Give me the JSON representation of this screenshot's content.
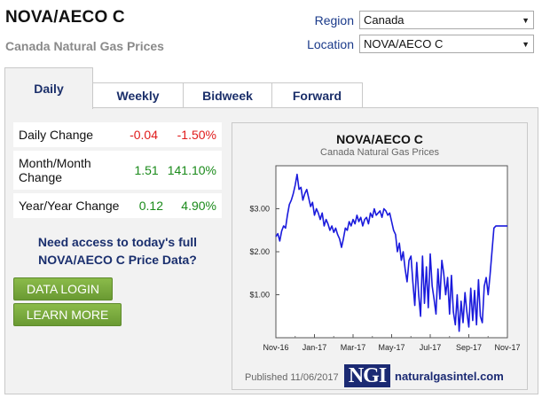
{
  "header": {
    "title": "NOVA/AECO C",
    "subtitle": "Canada Natural Gas Prices"
  },
  "filters": {
    "region_label": "Region",
    "region_value": "Canada",
    "location_label": "Location",
    "location_value": "NOVA/AECO C"
  },
  "tabs": [
    {
      "label": "Daily",
      "active": true
    },
    {
      "label": "Weekly",
      "active": false
    },
    {
      "label": "Bidweek",
      "active": false
    },
    {
      "label": "Forward",
      "active": false
    }
  ],
  "stats": [
    {
      "label": "Daily Change",
      "change": "-0.04",
      "percent": "-1.50%",
      "direction": "down"
    },
    {
      "label": "Month/Month Change",
      "change": "1.51",
      "percent": "141.10%",
      "direction": "up"
    },
    {
      "label": "Year/Year Change",
      "change": "0.12",
      "percent": "4.90%",
      "direction": "up"
    }
  ],
  "promo": {
    "text": "Need access to today's full NOVA/AECO C Price Data?",
    "login_label": "DATA LOGIN",
    "more_label": "LEARN MORE"
  },
  "colors": {
    "line": "#1a1adc",
    "negative": "#e01b1b",
    "positive": "#1a8a1a",
    "button": "#7aaa3e",
    "brand": "#1b2a73"
  },
  "chart_data": {
    "type": "line",
    "title": "NOVA/AECO C",
    "subtitle": "Canada Natural Gas Prices",
    "xlabel": "",
    "ylabel": "",
    "x_ticks": [
      "Nov-16",
      "Jan-17",
      "Mar-17",
      "May-17",
      "Jul-17",
      "Sep-17",
      "Nov-17"
    ],
    "y_ticks": [
      "$1.00",
      "$2.00",
      "$3.00"
    ],
    "ylim": [
      0,
      4
    ],
    "grid": false,
    "series": [
      {
        "x": [
          0.0,
          0.1,
          0.2,
          0.3,
          0.4,
          0.5,
          0.6,
          0.7,
          0.8,
          0.9,
          1.0,
          1.1,
          1.2,
          1.3,
          1.4,
          1.5,
          1.6,
          1.7,
          1.8,
          1.9,
          2.0,
          2.1,
          2.2,
          2.3,
          2.4,
          2.5,
          2.6,
          2.7,
          2.8,
          2.9,
          3.0,
          3.1,
          3.2,
          3.3,
          3.4,
          3.5,
          3.6,
          3.7,
          3.8,
          3.9,
          4.0,
          4.1,
          4.2,
          4.3,
          4.4,
          4.5,
          4.6,
          4.7,
          4.8,
          4.9,
          5.0,
          5.1,
          5.2,
          5.3,
          5.4,
          5.5,
          5.6,
          5.7,
          5.8,
          5.9,
          6.0,
          6.1,
          6.2,
          6.3,
          6.4,
          6.5,
          6.6,
          6.7,
          6.8,
          6.9,
          7.0,
          7.1,
          7.2,
          7.3,
          7.4,
          7.5,
          7.6,
          7.7,
          7.8,
          7.9,
          8.0,
          8.1,
          8.2,
          8.3,
          8.4,
          8.5,
          8.6,
          8.7,
          8.8,
          8.9,
          9.0,
          9.1,
          9.2,
          9.3,
          9.4,
          9.5,
          9.6,
          9.7,
          9.8,
          9.9,
          10.0,
          10.1,
          10.2,
          10.3,
          10.4,
          10.5,
          10.6,
          10.7,
          10.8,
          10.9,
          11.0,
          11.1,
          11.2,
          11.3,
          11.4,
          11.5,
          11.6,
          11.7,
          11.8,
          11.9,
          12.0
        ],
        "values": [
          2.35,
          2.42,
          2.25,
          2.48,
          2.6,
          2.55,
          2.85,
          3.1,
          3.2,
          3.35,
          3.55,
          3.8,
          3.45,
          3.5,
          3.2,
          3.35,
          3.45,
          3.25,
          3.05,
          3.15,
          2.85,
          3.0,
          2.9,
          2.75,
          2.9,
          2.6,
          2.75,
          2.65,
          2.5,
          2.6,
          2.45,
          2.55,
          2.4,
          2.3,
          2.1,
          2.3,
          2.55,
          2.5,
          2.7,
          2.6,
          2.75,
          2.65,
          2.85,
          2.7,
          2.8,
          2.6,
          2.75,
          2.8,
          2.65,
          2.9,
          2.8,
          3.0,
          2.85,
          2.9,
          2.95,
          2.8,
          3.0,
          2.95,
          2.85,
          2.9,
          2.7,
          2.5,
          2.4,
          2.0,
          2.2,
          1.8,
          2.0,
          1.6,
          1.3,
          1.8,
          1.9,
          1.3,
          0.75,
          1.75,
          1.0,
          0.5,
          1.9,
          0.8,
          1.65,
          0.7,
          1.95,
          1.2,
          0.9,
          0.55,
          1.6,
          0.9,
          1.8,
          1.5,
          1.0,
          1.4,
          0.55,
          1.45,
          0.6,
          0.3,
          1.0,
          0.15,
          0.85,
          0.35,
          1.05,
          0.6,
          0.25,
          1.15,
          0.4,
          1.1,
          0.3,
          1.35,
          0.5,
          0.35,
          1.2,
          1.4,
          1.0,
          1.45,
          2.0,
          2.55,
          2.6,
          2.6,
          2.6,
          2.6,
          2.6,
          2.6,
          2.6
        ]
      }
    ]
  },
  "footer": {
    "published": "Published 11/06/2017",
    "logo_text": "NGI",
    "site": "naturalgasintel.com"
  }
}
